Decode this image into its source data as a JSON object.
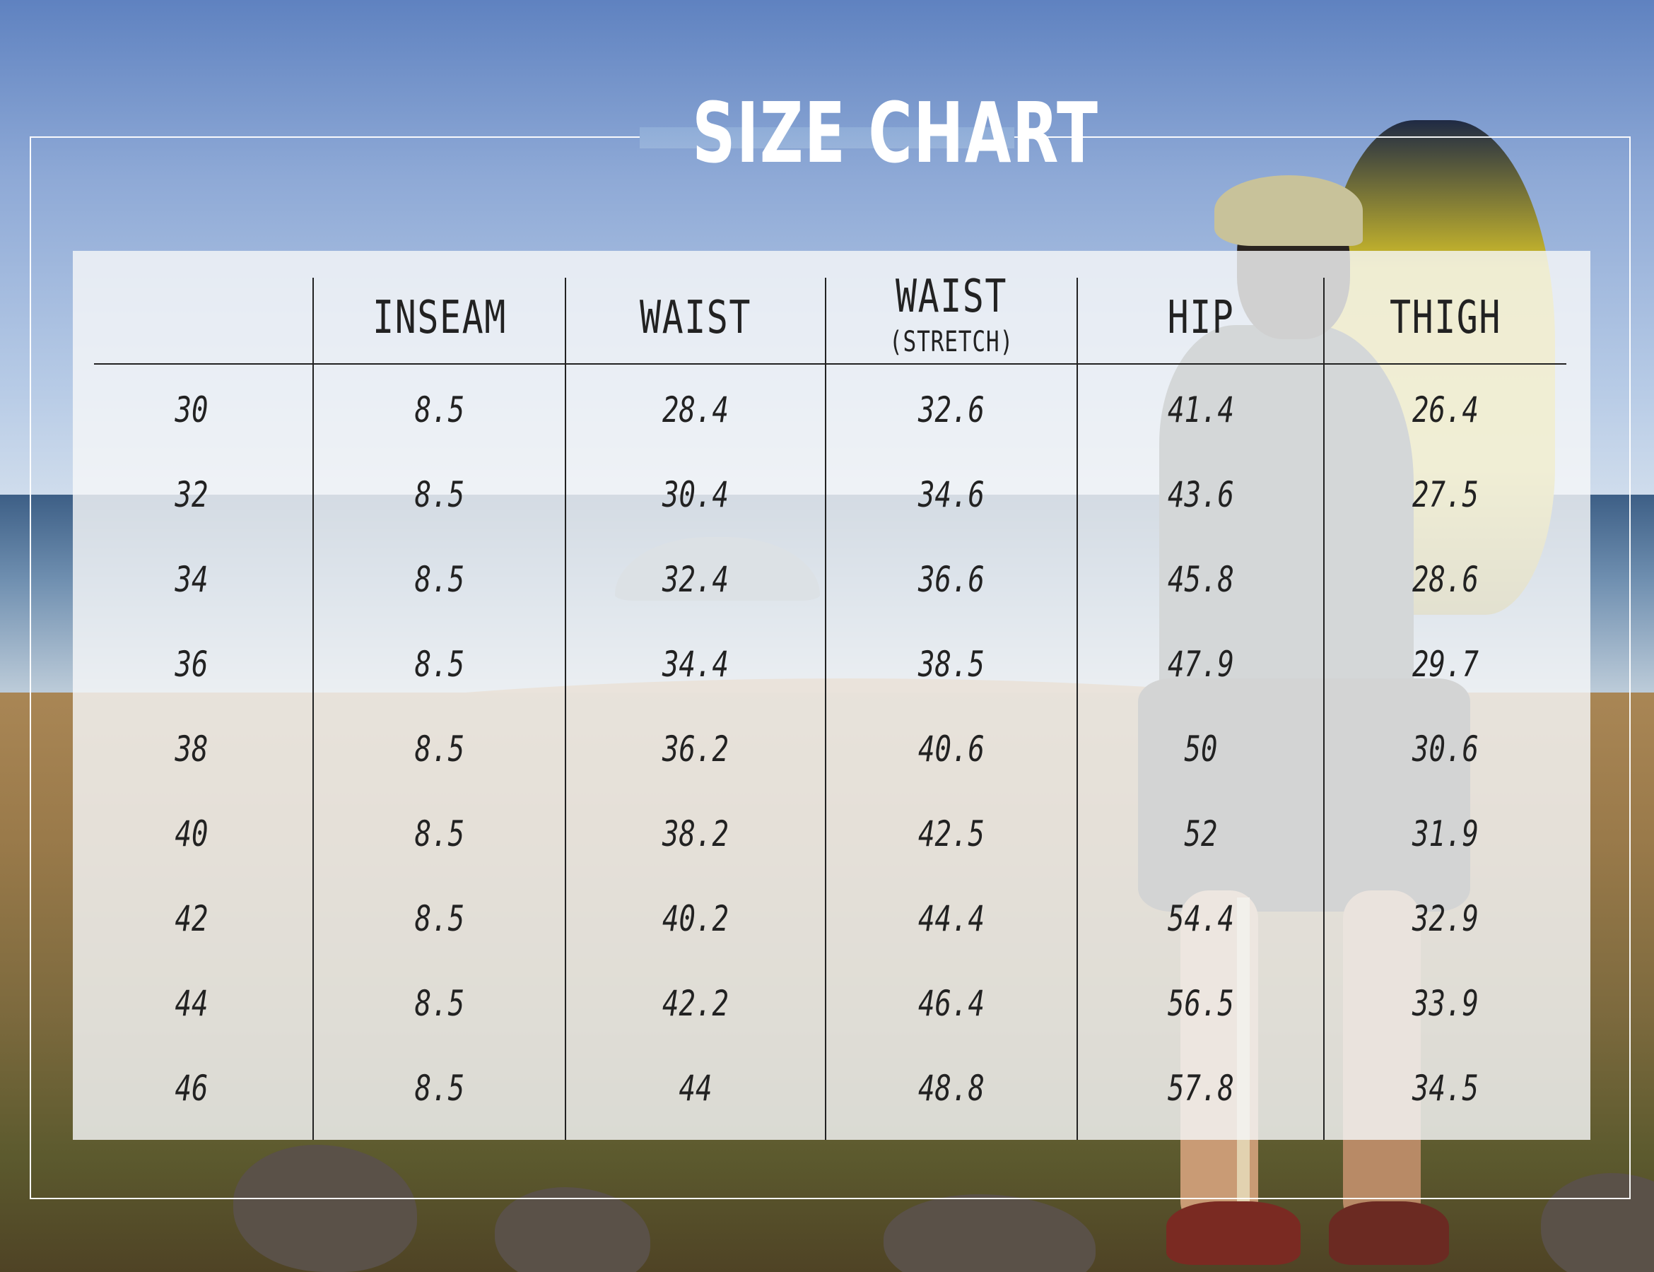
{
  "title": "SIZE CHART",
  "table": {
    "headers": [
      "",
      "INSEAM",
      "WAIST",
      "WAIST",
      "HIP",
      "THIGH"
    ],
    "header_sub": "(STRETCH)",
    "rows": [
      [
        "30",
        "8.5",
        "28.4",
        "32.6",
        "41.4",
        "26.4"
      ],
      [
        "32",
        "8.5",
        "30.4",
        "34.6",
        "43.6",
        "27.5"
      ],
      [
        "34",
        "8.5",
        "32.4",
        "36.6",
        "45.8",
        "28.6"
      ],
      [
        "36",
        "8.5",
        "34.4",
        "38.5",
        "47.9",
        "29.7"
      ],
      [
        "38",
        "8.5",
        "36.2",
        "40.6",
        "50",
        "30.6"
      ],
      [
        "40",
        "8.5",
        "38.2",
        "42.5",
        "52",
        "31.9"
      ],
      [
        "42",
        "8.5",
        "40.2",
        "44.4",
        "54.4",
        "32.9"
      ],
      [
        "44",
        "8.5",
        "42.2",
        "46.4",
        "56.5",
        "33.9"
      ],
      [
        "46",
        "8.5",
        "44",
        "48.8",
        "57.8",
        "34.5"
      ]
    ]
  },
  "colors": {
    "text": "#222222",
    "panel": "rgba(245,246,248,0.82)",
    "frame": "#ffffff",
    "title": "#ffffff"
  }
}
